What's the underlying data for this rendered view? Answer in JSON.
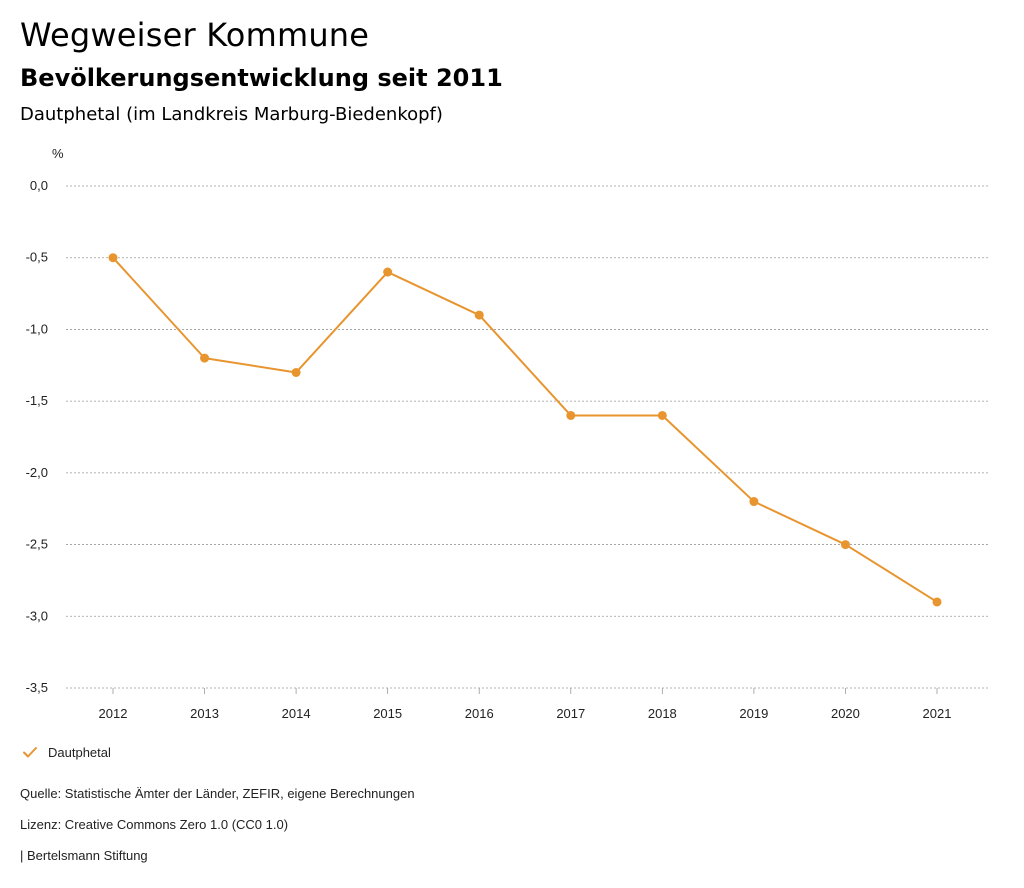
{
  "header": {
    "title": "Wegweiser Kommune",
    "subtitle": "Bevölkerungsentwicklung seit 2011",
    "region": "Dautphetal (im Landkreis Marburg-Biedenkopf)"
  },
  "chart_data": {
    "type": "line",
    "ylabel": "%",
    "ylim": [
      -3.5,
      0.0
    ],
    "yticks": [
      "0,0",
      "-0,5",
      "-1,0",
      "-1,5",
      "-2,0",
      "-2,5",
      "-3,0",
      "-3,5"
    ],
    "ytick_values": [
      0.0,
      -0.5,
      -1.0,
      -1.5,
      -2.0,
      -2.5,
      -3.0,
      -3.5
    ],
    "categories": [
      "2012",
      "2013",
      "2014",
      "2015",
      "2016",
      "2017",
      "2018",
      "2019",
      "2020",
      "2021"
    ],
    "series": [
      {
        "name": "Dautphetal",
        "color": "#E8952F",
        "values": [
          -0.5,
          -1.2,
          -1.3,
          -0.6,
          -0.9,
          -1.6,
          -1.6,
          -2.2,
          -2.5,
          -2.9
        ]
      }
    ],
    "grid": "horizontal-dotted",
    "legend_position": "bottom-left"
  },
  "legend": {
    "label": "Dautphetal",
    "icon": "check-icon"
  },
  "footer": {
    "source": "Quelle: Statistische Ämter der Länder, ZEFIR, eigene Berechnungen",
    "license": "Lizenz: Creative Commons Zero 1.0 (CC0 1.0)",
    "brand": "| Bertelsmann Stiftung"
  }
}
